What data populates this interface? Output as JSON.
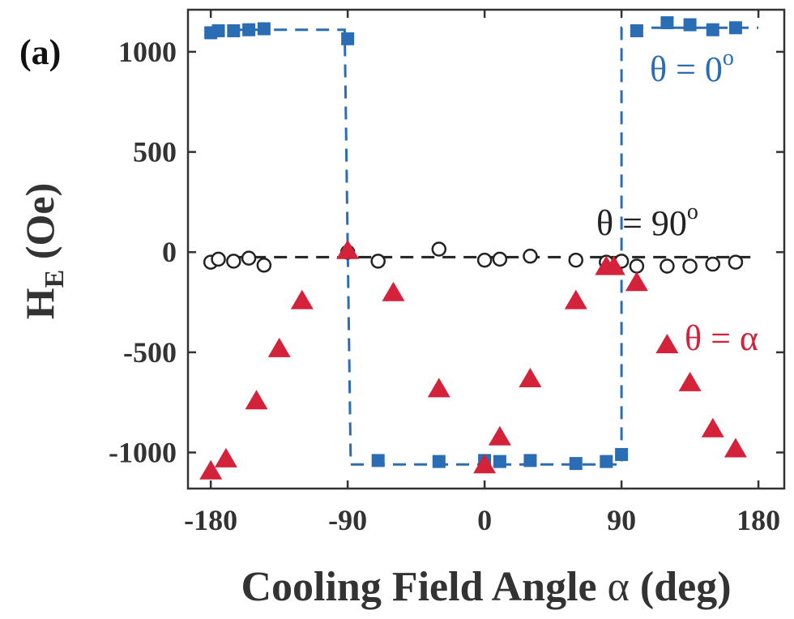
{
  "chart_data": {
    "type": "scatter",
    "panel_label": "(a)",
    "xlabel_main": "Cooling Field Angle ",
    "xlabel_symbol": "α",
    "xlabel_unit": " (deg)",
    "ylabel_main": "H",
    "ylabel_sub": "E",
    "ylabel_unit": " (Oe)",
    "xlim": [
      -195,
      197
    ],
    "ylim": [
      -1180,
      1210
    ],
    "xticks": [
      -180,
      -90,
      0,
      90,
      180
    ],
    "yticks": [
      1000,
      500,
      0,
      -500,
      -1000
    ],
    "xtick_labels": [
      "-180",
      "-90",
      "0",
      "90",
      "180"
    ],
    "ytick_labels": [
      "1000",
      "500",
      "0",
      "-500",
      "-1000"
    ],
    "grid": false,
    "series": [
      {
        "name": "θ = 0°",
        "annotation": {
          "prefix": "θ = 0",
          "sup": "o"
        },
        "marker": "square",
        "color": "#2a6db5",
        "x": [
          -180,
          -175,
          -165,
          -155,
          -145,
          -90,
          -70,
          -30,
          0,
          10,
          30,
          60,
          80,
          90,
          100,
          120,
          135,
          150,
          165
        ],
        "y": [
          1095,
          1105,
          1105,
          1110,
          1115,
          1065,
          -1040,
          -1045,
          -1040,
          -1045,
          -1040,
          -1055,
          -1045,
          -1010,
          1105,
          1145,
          1135,
          1110,
          1120
        ]
      },
      {
        "name": "θ = 90°",
        "annotation": {
          "prefix": "θ = 90",
          "sup": "o"
        },
        "marker": "open-circle",
        "color": "#222222",
        "x": [
          -180,
          -175,
          -165,
          -155,
          -145,
          -90,
          -70,
          -30,
          0,
          10,
          30,
          60,
          80,
          90,
          100,
          120,
          135,
          150,
          165
        ],
        "y": [
          -50,
          -35,
          -45,
          -30,
          -65,
          0,
          -45,
          15,
          -40,
          -35,
          -20,
          -40,
          -50,
          -45,
          -70,
          -70,
          -70,
          -60,
          -50
        ]
      },
      {
        "name": "θ = α",
        "annotation": {
          "prefix": "θ = α",
          "sup": ""
        },
        "marker": "triangle",
        "color": "#d3223a",
        "x": [
          -180,
          -170,
          -150,
          -135,
          -120,
          -90,
          -60,
          -30,
          0,
          10,
          30,
          60,
          80,
          85,
          100,
          120,
          135,
          150,
          165
        ],
        "y": [
          -1090,
          -1030,
          -740,
          -480,
          -240,
          10,
          -200,
          -680,
          -1060,
          -920,
          -630,
          -240,
          -70,
          -70,
          -150,
          -460,
          -650,
          -880,
          -980
        ]
      }
    ],
    "fit_lines": [
      {
        "series": "θ = 0°",
        "style": "dashed",
        "color": "#2a6db5",
        "x": [
          -180,
          -92,
          -88,
          90,
          90,
          180
        ],
        "y": [
          1110,
          1110,
          -1060,
          -1060,
          1120,
          1120
        ]
      },
      {
        "series": "θ = 90°",
        "style": "dashed",
        "color": "#222222",
        "x": [
          -180,
          180
        ],
        "y": [
          -25,
          -25
        ]
      }
    ]
  }
}
